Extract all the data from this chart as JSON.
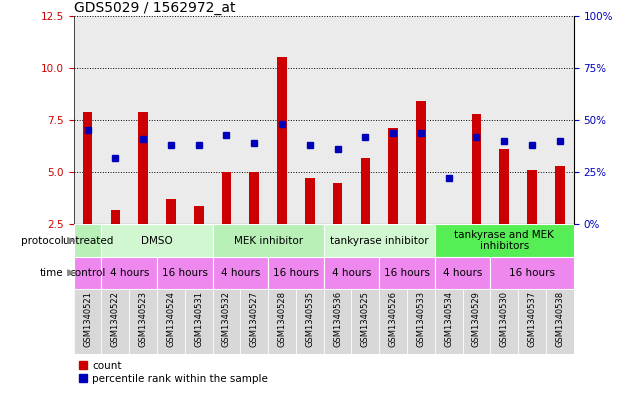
{
  "title": "GDS5029 / 1562972_at",
  "samples": [
    "GSM1340521",
    "GSM1340522",
    "GSM1340523",
    "GSM1340524",
    "GSM1340531",
    "GSM1340532",
    "GSM1340527",
    "GSM1340528",
    "GSM1340535",
    "GSM1340536",
    "GSM1340525",
    "GSM1340526",
    "GSM1340533",
    "GSM1340534",
    "GSM1340529",
    "GSM1340530",
    "GSM1340537",
    "GSM1340538"
  ],
  "red_values": [
    7.9,
    3.2,
    7.9,
    3.7,
    3.4,
    5.0,
    5.0,
    10.5,
    4.7,
    4.5,
    5.7,
    7.1,
    8.4,
    2.5,
    7.8,
    6.1,
    5.1,
    5.3
  ],
  "blue_values": [
    45,
    32,
    41,
    38,
    38,
    43,
    39,
    48,
    38,
    36,
    42,
    44,
    44,
    22,
    42,
    40,
    38,
    40
  ],
  "protocol_groups": [
    {
      "label": "untreated",
      "start": 0,
      "end": 1,
      "color": "#b8f0b8"
    },
    {
      "label": "DMSO",
      "start": 1,
      "end": 5,
      "color": "#d0f7d0"
    },
    {
      "label": "MEK inhibitor",
      "start": 5,
      "end": 9,
      "color": "#b8f0b8"
    },
    {
      "label": "tankyrase inhibitor",
      "start": 9,
      "end": 13,
      "color": "#d0f7d0"
    },
    {
      "label": "tankyrase and MEK\ninhibitors",
      "start": 13,
      "end": 18,
      "color": "#55ee55"
    }
  ],
  "time_groups": [
    {
      "label": "control",
      "start": 0,
      "end": 1
    },
    {
      "label": "4 hours",
      "start": 1,
      "end": 3
    },
    {
      "label": "16 hours",
      "start": 3,
      "end": 5
    },
    {
      "label": "4 hours",
      "start": 5,
      "end": 7
    },
    {
      "label": "16 hours",
      "start": 7,
      "end": 9
    },
    {
      "label": "4 hours",
      "start": 9,
      "end": 11
    },
    {
      "label": "16 hours",
      "start": 11,
      "end": 13
    },
    {
      "label": "4 hours",
      "start": 13,
      "end": 15
    },
    {
      "label": "16 hours",
      "start": 15,
      "end": 18
    }
  ],
  "time_color": "#ee88ee",
  "ylim_left": [
    2.5,
    12.5
  ],
  "ylim_right": [
    0,
    100
  ],
  "yticks_left": [
    2.5,
    5.0,
    7.5,
    10.0,
    12.5
  ],
  "yticks_right": [
    0,
    25,
    50,
    75,
    100
  ],
  "bar_color": "#cc0000",
  "dot_color": "#0000bb",
  "col_bg_color": "#d8d8d8",
  "title_fontsize": 10,
  "tick_fontsize": 7.5,
  "sample_fontsize": 6,
  "row_fontsize": 7.5,
  "legend_fontsize": 7.5
}
